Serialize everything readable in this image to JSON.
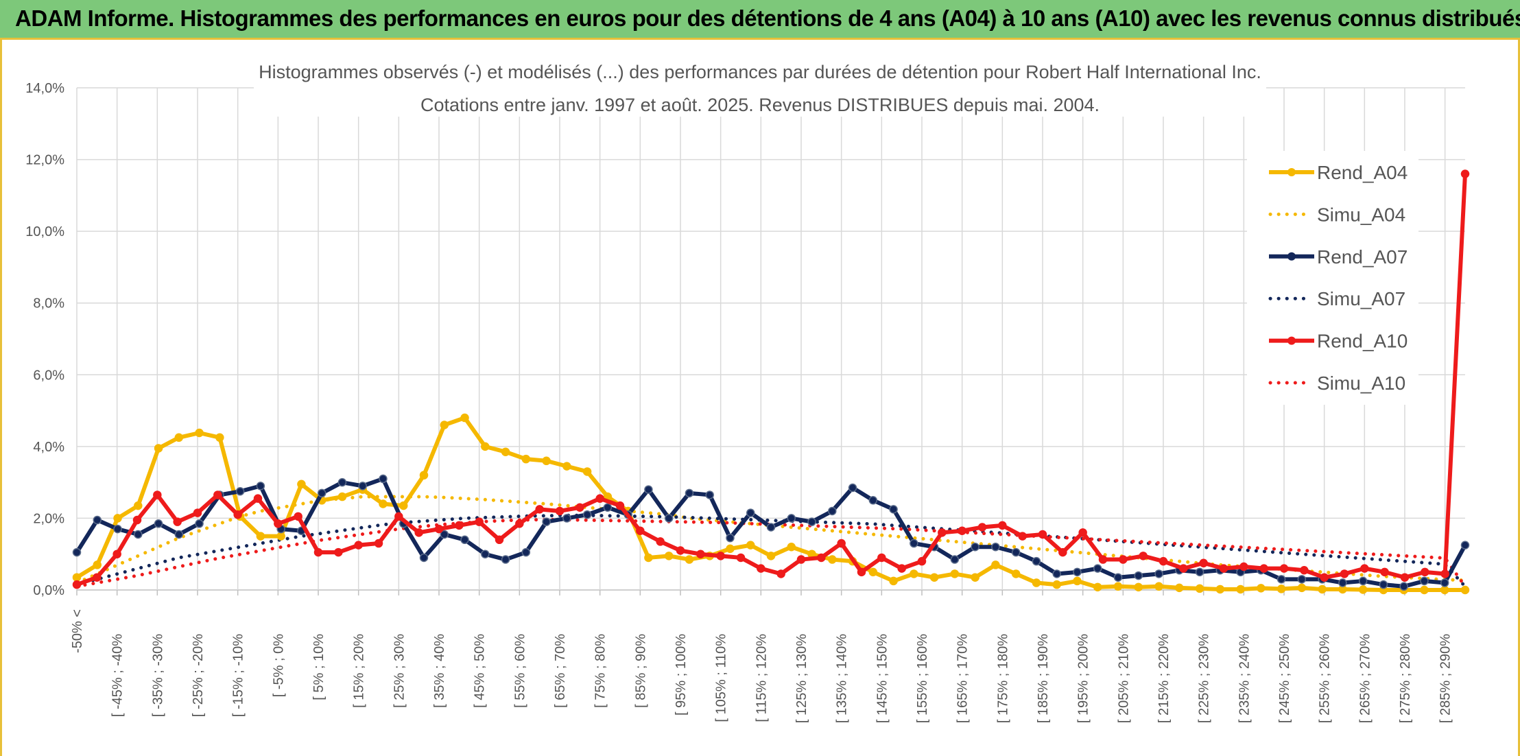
{
  "header": {
    "banner_title": "ADAM Informe. Histogrammes des performances en euros pour des détentions de 4 ans (A04) à 10 ans (A10) avec les revenus connus distribués"
  },
  "colors": {
    "banner_bg": "#7dc87a",
    "accent_border": "#e8c03a",
    "a04": "#f5b800",
    "a07": "#13275a",
    "a10": "#ee1b1b",
    "grid": "#d9d9d9"
  },
  "chart_data": {
    "type": "line",
    "title": "Histogrammes observés (-) et modélisés (...) des performances par durées de détention pour Robert Half International Inc.",
    "subtitle": "Cotations entre janv. 1997 et août. 2025. Revenus DISTRIBUES depuis mai. 2004.",
    "xlabel": "",
    "ylabel": "",
    "ylim": [
      0,
      14
    ],
    "yticks": [
      "0,0%",
      "2,0%",
      "4,0%",
      "6,0%",
      "8,0%",
      "10,0%",
      "12,0%",
      "14,0%"
    ],
    "grid": true,
    "legend_position": "right",
    "x_labels": [
      "-50% <",
      "[ -45% ; -40%",
      "[ -35% ; -30%",
      "[ -25% ; -20%",
      "[ -15% ; -10%",
      "[ -5% ; 0%",
      "[ 5% ; 10%",
      "[ 15% ; 20%",
      "[ 25% ; 30%",
      "[ 35% ; 40%",
      "[ 45% ; 50%",
      "[ 55% ; 60%",
      "[ 65% ; 70%",
      "[ 75% ; 80%",
      "[ 85% ; 90%",
      "[ 95% ; 100%",
      "[ 105% ; 110%",
      "[ 115% ; 120%",
      "[ 125% ; 130%",
      "[ 135% ; 140%",
      "[ 145% ; 150%",
      "[ 155% ; 160%",
      "[ 165% ; 170%",
      "[ 175% ; 180%",
      "[ 185% ; 190%",
      "[ 195% ; 200%",
      "[ 205% ; 210%",
      "[ 215% ; 220%",
      "[ 225% ; 230%",
      "[ 235% ; 240%",
      "[ 245% ; 250%",
      "[ 255% ; 260%",
      "[ 265% ; 270%",
      "[ 275% ; 280%",
      "[ 285% ; 290%"
    ],
    "series": [
      {
        "name": "Rend_A04",
        "style": "solid",
        "color": "#f5b800",
        "values": [
          0.35,
          0.7,
          2.0,
          2.35,
          3.95,
          4.25,
          4.38,
          4.25,
          2.05,
          1.5,
          1.5,
          2.95,
          2.5,
          2.6,
          2.8,
          2.4,
          2.35,
          3.2,
          4.6,
          4.8,
          4.0,
          3.85,
          3.65,
          3.6,
          3.45,
          3.3,
          2.6,
          2.2,
          0.9,
          0.95,
          0.85,
          0.95,
          1.15,
          1.25,
          0.95,
          1.2,
          1.0,
          0.85,
          0.8,
          0.5,
          0.25,
          0.45,
          0.35,
          0.45,
          0.35,
          0.7,
          0.45,
          0.2,
          0.15,
          0.25,
          0.08,
          0.1,
          0.08,
          0.1,
          0.06,
          0.04,
          0.02,
          0.02,
          0.05,
          0.03,
          0.06,
          0.02,
          0.02,
          0.01,
          0.0,
          0.0,
          0.0,
          0.0,
          0.0
        ]
      },
      {
        "name": "Simu_A04",
        "style": "dotted",
        "color": "#f5b800",
        "values": [
          0.2,
          0.45,
          0.7,
          0.95,
          1.2,
          1.45,
          1.65,
          1.85,
          2.05,
          2.2,
          2.3,
          2.4,
          2.5,
          2.55,
          2.6,
          2.6,
          2.6,
          2.6,
          2.58,
          2.55,
          2.52,
          2.48,
          2.44,
          2.4,
          2.35,
          2.3,
          2.25,
          2.2,
          2.15,
          2.1,
          2.0,
          1.95,
          1.9,
          1.85,
          1.8,
          1.75,
          1.7,
          1.65,
          1.6,
          1.55,
          1.5,
          1.45,
          1.4,
          1.35,
          1.3,
          1.25,
          1.2,
          1.15,
          1.1,
          1.05,
          1.0,
          0.95,
          0.9,
          0.85,
          0.8,
          0.75,
          0.7,
          0.66,
          0.62,
          0.58,
          0.54,
          0.5,
          0.46,
          0.42,
          0.38,
          0.35,
          0.32,
          0.29,
          0.27
        ]
      },
      {
        "name": "Rend_A07",
        "style": "solid",
        "color": "#13275a",
        "values": [
          1.05,
          1.95,
          1.7,
          1.55,
          1.85,
          1.55,
          1.85,
          2.65,
          2.75,
          2.9,
          1.7,
          1.65,
          2.7,
          3.0,
          2.9,
          3.1,
          1.85,
          0.9,
          1.55,
          1.4,
          1.0,
          0.85,
          1.05,
          1.9,
          2.0,
          2.1,
          2.3,
          2.1,
          2.8,
          2.0,
          2.7,
          2.65,
          1.45,
          2.15,
          1.75,
          2.0,
          1.9,
          2.2,
          2.85,
          2.5,
          2.25,
          1.3,
          1.2,
          0.85,
          1.2,
          1.2,
          1.05,
          0.8,
          0.45,
          0.5,
          0.6,
          0.35,
          0.4,
          0.45,
          0.55,
          0.5,
          0.55,
          0.5,
          0.55,
          0.3,
          0.3,
          0.3,
          0.2,
          0.25,
          0.15,
          0.1,
          0.25,
          0.2,
          1.25
        ]
      },
      {
        "name": "Simu_A07",
        "style": "dotted",
        "color": "#13275a",
        "values": [
          0.15,
          0.3,
          0.45,
          0.6,
          0.75,
          0.9,
          1.0,
          1.1,
          1.2,
          1.3,
          1.4,
          1.5,
          1.58,
          1.66,
          1.74,
          1.82,
          1.88,
          1.92,
          1.96,
          2.0,
          2.02,
          2.04,
          2.06,
          2.07,
          2.08,
          2.08,
          2.07,
          2.06,
          2.05,
          2.04,
          2.02,
          2.0,
          1.98,
          1.96,
          1.94,
          1.92,
          1.9,
          1.88,
          1.86,
          1.84,
          1.8,
          1.76,
          1.72,
          1.68,
          1.64,
          1.6,
          1.56,
          1.52,
          1.48,
          1.44,
          1.4,
          1.36,
          1.32,
          1.28,
          1.24,
          1.2,
          1.16,
          1.12,
          1.08,
          1.04,
          1.0,
          0.96,
          0.92,
          0.88,
          0.84,
          0.8,
          0.76,
          0.72,
          0.1
        ]
      },
      {
        "name": "Rend_A10",
        "style": "solid",
        "color": "#ee1b1b",
        "values": [
          0.15,
          0.35,
          1.0,
          1.95,
          2.65,
          1.9,
          2.15,
          2.65,
          2.1,
          2.55,
          1.85,
          2.05,
          1.05,
          1.05,
          1.25,
          1.3,
          2.05,
          1.6,
          1.7,
          1.8,
          1.9,
          1.4,
          1.85,
          2.25,
          2.2,
          2.3,
          2.55,
          2.35,
          1.65,
          1.35,
          1.1,
          1.0,
          0.95,
          0.9,
          0.6,
          0.45,
          0.85,
          0.9,
          1.3,
          0.5,
          0.9,
          0.6,
          0.8,
          1.6,
          1.65,
          1.75,
          1.8,
          1.5,
          1.55,
          1.05,
          1.6,
          0.85,
          0.85,
          0.95,
          0.8,
          0.6,
          0.75,
          0.6,
          0.65,
          0.6,
          0.6,
          0.55,
          0.35,
          0.45,
          0.6,
          0.5,
          0.35,
          0.5,
          0.45,
          11.6
        ]
      },
      {
        "name": "Simu_A10",
        "style": "dotted",
        "color": "#ee1b1b",
        "values": [
          0.1,
          0.2,
          0.3,
          0.4,
          0.52,
          0.64,
          0.76,
          0.88,
          0.98,
          1.08,
          1.18,
          1.28,
          1.38,
          1.46,
          1.54,
          1.62,
          1.7,
          1.76,
          1.82,
          1.86,
          1.9,
          1.93,
          1.95,
          1.96,
          1.96,
          1.95,
          1.94,
          1.93,
          1.92,
          1.91,
          1.9,
          1.89,
          1.88,
          1.86,
          1.84,
          1.82,
          1.8,
          1.78,
          1.76,
          1.74,
          1.72,
          1.7,
          1.67,
          1.64,
          1.61,
          1.58,
          1.55,
          1.52,
          1.49,
          1.46,
          1.43,
          1.4,
          1.37,
          1.34,
          1.31,
          1.28,
          1.25,
          1.22,
          1.19,
          1.16,
          1.13,
          1.1,
          1.07,
          1.04,
          1.01,
          0.98,
          0.95,
          0.92,
          0.89,
          0.1
        ]
      }
    ]
  }
}
